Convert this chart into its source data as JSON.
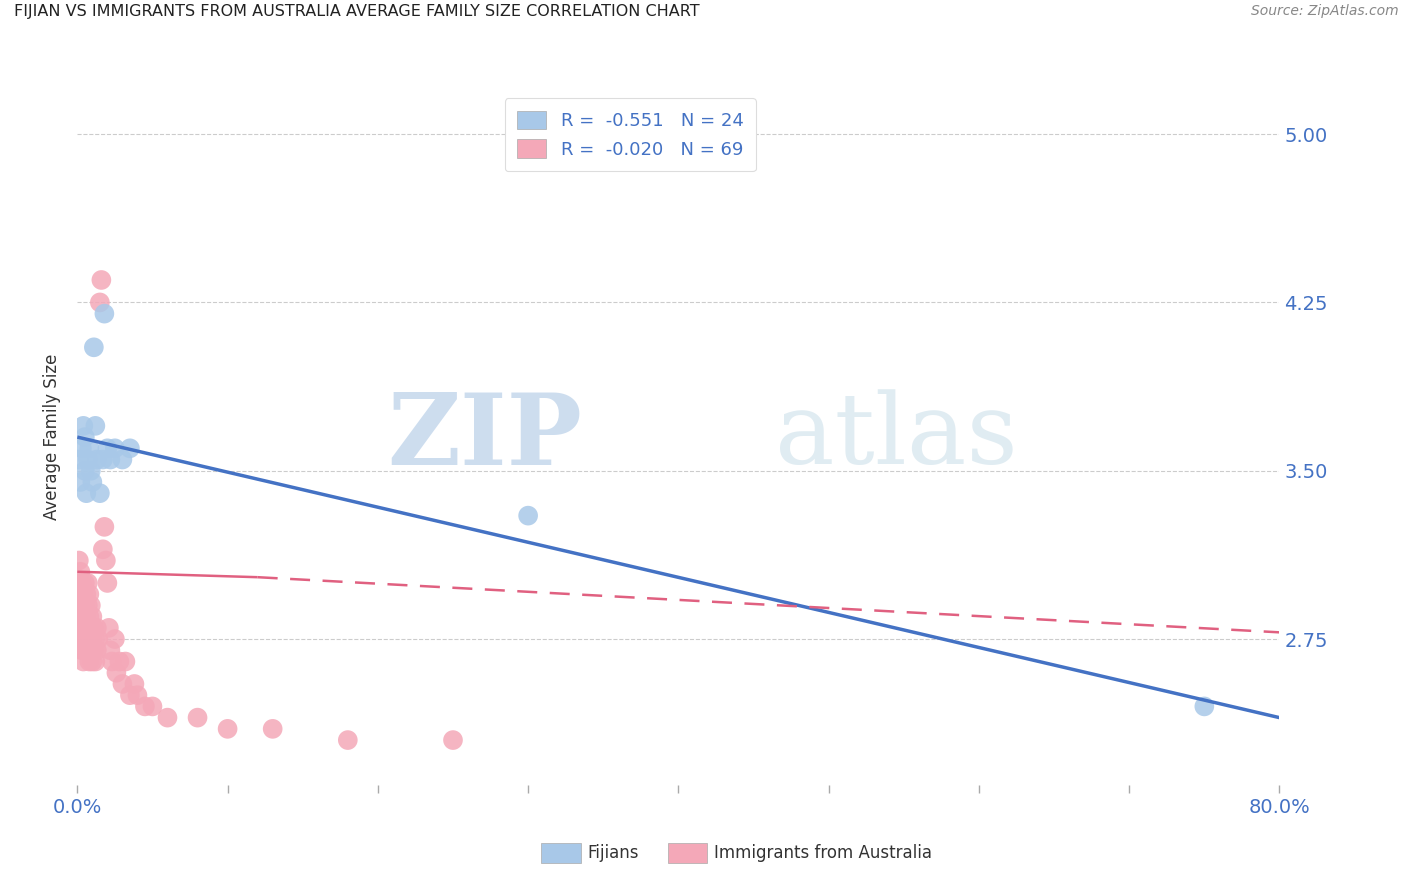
{
  "title": "FIJIAN VS IMMIGRANTS FROM AUSTRALIA AVERAGE FAMILY SIZE CORRELATION CHART",
  "source": "Source: ZipAtlas.com",
  "ylabel": "Average Family Size",
  "yticks": [
    2.75,
    3.5,
    4.25,
    5.0
  ],
  "xmin": 0.0,
  "xmax": 0.8,
  "ymin": 2.1,
  "ymax": 5.2,
  "fijians_R": -0.551,
  "fijians_N": 24,
  "immigrants_R": -0.02,
  "immigrants_N": 69,
  "fijians_color": "#a8c8e8",
  "immigrants_color": "#f4a8b8",
  "fijians_line_color": "#4472c4",
  "immigrants_line_color": "#e06080",
  "legend_label_fijians": "Fijians",
  "legend_label_immigrants": "Immigrants from Australia",
  "watermark_zip": "ZIP",
  "watermark_atlas": "atlas",
  "fijians_scatter_x": [
    0.001,
    0.002,
    0.003,
    0.004,
    0.005,
    0.005,
    0.006,
    0.007,
    0.008,
    0.009,
    0.01,
    0.011,
    0.012,
    0.013,
    0.015,
    0.017,
    0.018,
    0.02,
    0.022,
    0.025,
    0.03,
    0.035,
    0.3,
    0.75
  ],
  "fijians_scatter_y": [
    3.55,
    3.45,
    3.6,
    3.7,
    3.5,
    3.65,
    3.4,
    3.55,
    3.6,
    3.5,
    3.45,
    4.05,
    3.7,
    3.55,
    3.4,
    3.55,
    4.2,
    3.6,
    3.55,
    3.6,
    3.55,
    3.6,
    3.3,
    2.45
  ],
  "immigrants_scatter_x": [
    0.001,
    0.001,
    0.001,
    0.002,
    0.002,
    0.002,
    0.002,
    0.003,
    0.003,
    0.003,
    0.003,
    0.003,
    0.004,
    0.004,
    0.004,
    0.004,
    0.005,
    0.005,
    0.005,
    0.005,
    0.006,
    0.006,
    0.006,
    0.007,
    0.007,
    0.007,
    0.007,
    0.008,
    0.008,
    0.008,
    0.008,
    0.009,
    0.009,
    0.009,
    0.01,
    0.01,
    0.01,
    0.011,
    0.011,
    0.012,
    0.012,
    0.013,
    0.013,
    0.014,
    0.015,
    0.016,
    0.017,
    0.018,
    0.019,
    0.02,
    0.021,
    0.022,
    0.023,
    0.025,
    0.026,
    0.028,
    0.03,
    0.032,
    0.035,
    0.038,
    0.04,
    0.045,
    0.05,
    0.06,
    0.08,
    0.1,
    0.13,
    0.18,
    0.25
  ],
  "immigrants_scatter_y": [
    3.1,
    3.0,
    2.9,
    3.05,
    2.95,
    2.85,
    2.75,
    3.0,
    2.9,
    2.8,
    2.7,
    2.85,
    2.95,
    2.85,
    2.75,
    2.65,
    3.0,
    2.9,
    2.8,
    2.7,
    2.95,
    2.85,
    2.75,
    3.0,
    2.9,
    2.8,
    2.7,
    2.95,
    2.85,
    2.75,
    2.65,
    2.9,
    2.8,
    2.7,
    2.85,
    2.75,
    2.65,
    2.8,
    2.7,
    2.75,
    2.65,
    2.8,
    2.7,
    2.75,
    4.25,
    4.35,
    3.15,
    3.25,
    3.1,
    3.0,
    2.8,
    2.7,
    2.65,
    2.75,
    2.6,
    2.65,
    2.55,
    2.65,
    2.5,
    2.55,
    2.5,
    2.45,
    2.45,
    2.4,
    2.4,
    2.35,
    2.35,
    2.3,
    2.3
  ],
  "fijians_line_x0": 0.0,
  "fijians_line_y0": 3.65,
  "fijians_line_x1": 0.8,
  "fijians_line_y1": 2.4,
  "immigrants_line_x0": 0.0,
  "immigrants_line_y0": 3.05,
  "immigrants_line_x1": 0.8,
  "immigrants_line_y1": 2.78
}
